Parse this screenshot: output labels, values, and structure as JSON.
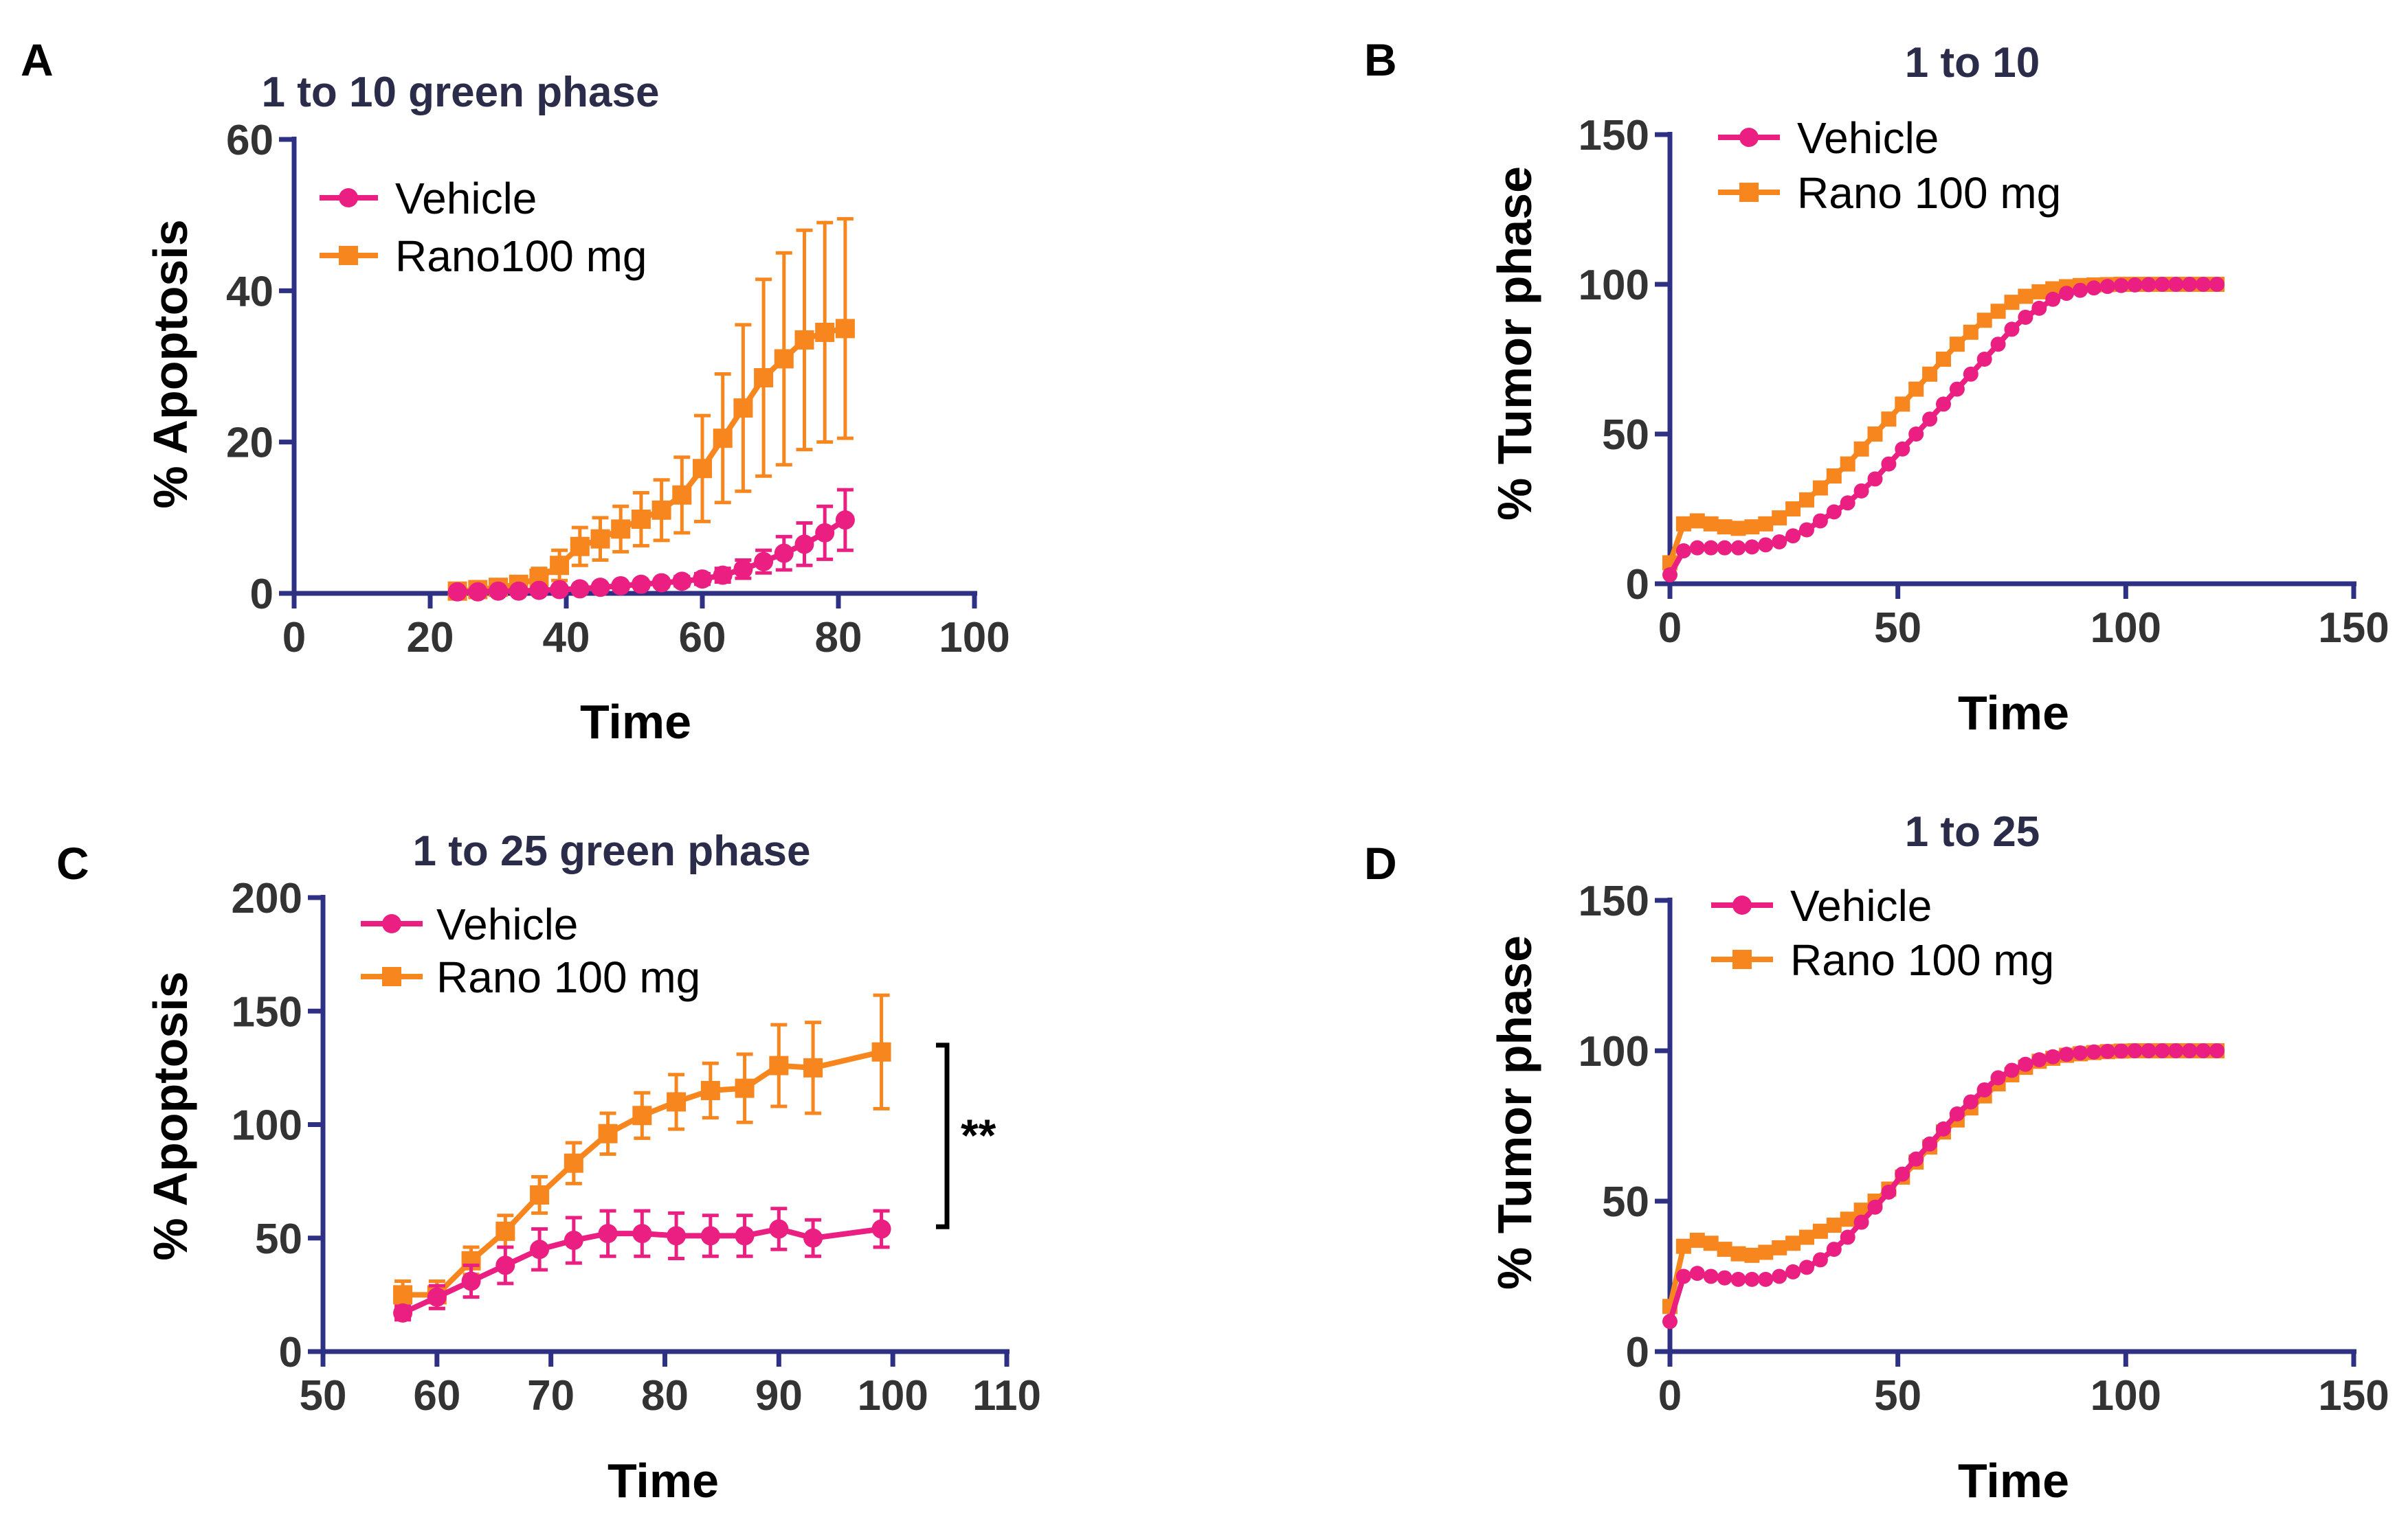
{
  "colors": {
    "vehicle": "#ea1f81",
    "rano": "#f7861f",
    "axis": "#2e3183",
    "title": "#2b2b4a"
  },
  "chart_data": [
    {
      "id": "A",
      "panel_label": "A",
      "type": "line",
      "title": "1 to 10 green phase",
      "xlabel": "Time",
      "ylabel": "% Apoptosis",
      "xlim": [
        0,
        100
      ],
      "ylim": [
        0,
        60
      ],
      "xticks": [
        0,
        20,
        40,
        60,
        80,
        100
      ],
      "yticks": [
        0,
        20,
        40,
        60
      ],
      "legend": "top-left",
      "series": [
        {
          "name": "Vehicle",
          "marker": "circle",
          "x": [
            24,
            27,
            30,
            33,
            36,
            39,
            42,
            45,
            48,
            51,
            54,
            57,
            60,
            63,
            66,
            69,
            72,
            75,
            78,
            81
          ],
          "y": [
            0.2,
            0.2,
            0.3,
            0.3,
            0.4,
            0.5,
            0.6,
            0.8,
            1.0,
            1.2,
            1.4,
            1.6,
            1.9,
            2.4,
            3.2,
            4.2,
            5.3,
            6.5,
            8.0,
            9.7
          ],
          "err": [
            0.1,
            0.1,
            0.1,
            0.1,
            0.1,
            0.2,
            0.2,
            0.3,
            0.3,
            0.4,
            0.5,
            0.6,
            0.7,
            0.9,
            1.2,
            1.5,
            2.2,
            2.8,
            3.5,
            4.0
          ]
        },
        {
          "name": "Rano100 mg",
          "marker": "square",
          "x": [
            24,
            27,
            30,
            33,
            36,
            39,
            42,
            45,
            48,
            51,
            54,
            57,
            60,
            63,
            66,
            69,
            72,
            75,
            78,
            81
          ],
          "y": [
            0.3,
            0.5,
            0.8,
            1.2,
            2.0,
            3.7,
            6.2,
            7.2,
            8.5,
            9.8,
            11.0,
            13.0,
            16.5,
            20.5,
            24.5,
            28.5,
            31.0,
            33.5,
            34.5,
            35.0
          ],
          "err": [
            0.3,
            0.4,
            0.6,
            0.9,
            1.3,
            2.0,
            2.5,
            2.8,
            3.0,
            3.5,
            4.0,
            5.0,
            7.0,
            8.5,
            11.0,
            13.0,
            14.0,
            14.5,
            14.5,
            14.5
          ]
        }
      ]
    },
    {
      "id": "B",
      "panel_label": "B",
      "type": "line",
      "title": "1 to 10",
      "xlabel": "Time",
      "ylabel": "% Tumor phase",
      "xlim": [
        0,
        150
      ],
      "ylim": [
        0,
        150
      ],
      "xticks": [
        0,
        50,
        100,
        150
      ],
      "yticks": [
        0,
        50,
        100,
        150
      ],
      "legend": "top-left",
      "series": [
        {
          "name": "Vehicle",
          "marker": "circle",
          "x": [
            0,
            3,
            6,
            9,
            12,
            15,
            18,
            21,
            24,
            27,
            30,
            33,
            36,
            39,
            42,
            45,
            48,
            51,
            54,
            57,
            60,
            63,
            66,
            69,
            72,
            75,
            78,
            81,
            84,
            87,
            90,
            93,
            96,
            99,
            102,
            105,
            108,
            111,
            114,
            117,
            120
          ],
          "y": [
            3,
            11,
            12,
            12,
            12,
            12,
            12.3,
            13,
            14,
            16,
            18,
            21,
            24,
            27,
            31,
            35,
            40,
            45,
            50,
            55,
            60,
            65,
            70,
            75,
            80,
            85,
            89,
            92,
            95,
            97,
            98,
            98.8,
            99.3,
            99.6,
            99.8,
            99.9,
            100,
            100,
            100,
            100,
            100
          ]
        },
        {
          "name": "Rano 100 mg",
          "marker": "square",
          "x": [
            0,
            3,
            6,
            9,
            12,
            15,
            18,
            21,
            24,
            27,
            30,
            33,
            36,
            39,
            42,
            45,
            48,
            51,
            54,
            57,
            60,
            63,
            66,
            69,
            72,
            75,
            78,
            81,
            84,
            87,
            90,
            93,
            96,
            99,
            102,
            105,
            108,
            111,
            114,
            117,
            120
          ],
          "y": [
            7,
            20,
            21,
            20,
            19,
            18.5,
            19,
            20,
            22,
            25,
            28,
            32,
            36,
            40,
            45,
            50,
            55,
            60,
            65,
            70,
            75,
            80,
            84,
            88,
            91,
            94,
            96,
            97.5,
            98.5,
            99.2,
            99.6,
            99.8,
            99.9,
            100,
            100,
            100,
            100,
            100,
            100,
            100,
            100
          ]
        }
      ]
    },
    {
      "id": "C",
      "panel_label": "C",
      "type": "line",
      "title": "1 to 25 green phase",
      "xlabel": "Time",
      "ylabel": "% Apoptosis",
      "xlim": [
        50,
        110
      ],
      "ylim": [
        0,
        200
      ],
      "xticks": [
        50,
        60,
        70,
        80,
        90,
        100,
        110
      ],
      "yticks": [
        0,
        50,
        100,
        150,
        200
      ],
      "legend": "top-left",
      "annotation": "**",
      "bracket_y": [
        55,
        135
      ],
      "series": [
        {
          "name": "Vehicle",
          "marker": "circle",
          "x": [
            57,
            60,
            63,
            66,
            69,
            72,
            75,
            78,
            81,
            84,
            87,
            90,
            93,
            99
          ],
          "y": [
            17,
            24,
            31,
            38,
            45,
            49,
            52,
            52,
            51,
            51,
            51,
            54,
            50,
            54
          ],
          "err": [
            3,
            5,
            7,
            8,
            9,
            10,
            10,
            10,
            10,
            9,
            9,
            9,
            8,
            8
          ]
        },
        {
          "name": "Rano 100 mg",
          "marker": "square",
          "x": [
            57,
            60,
            63,
            66,
            69,
            72,
            75,
            78,
            81,
            84,
            87,
            90,
            93,
            99
          ],
          "y": [
            25,
            25,
            40,
            53,
            69,
            83,
            96,
            104,
            110,
            115,
            116,
            126,
            125,
            132
          ],
          "err": [
            6,
            6,
            6,
            7,
            8,
            9,
            9,
            10,
            12,
            12,
            15,
            18,
            20,
            25
          ]
        }
      ]
    },
    {
      "id": "D",
      "panel_label": "D",
      "type": "line",
      "title": "1 to 25",
      "xlabel": "Time",
      "ylabel": "% Tumor phase",
      "xlim": [
        0,
        150
      ],
      "ylim": [
        0,
        150
      ],
      "xticks": [
        0,
        50,
        100,
        150
      ],
      "yticks": [
        0,
        50,
        100,
        150
      ],
      "legend": "top-left",
      "series": [
        {
          "name": "Vehicle",
          "marker": "circle",
          "x": [
            0,
            3,
            6,
            9,
            12,
            15,
            18,
            21,
            24,
            27,
            30,
            33,
            36,
            39,
            42,
            45,
            48,
            51,
            54,
            57,
            60,
            63,
            66,
            69,
            72,
            75,
            78,
            81,
            84,
            87,
            90,
            93,
            96,
            99,
            102,
            105,
            108,
            111,
            114,
            117,
            120
          ],
          "y": [
            10,
            25,
            26,
            25,
            24.5,
            24,
            24,
            24,
            25,
            26.5,
            28,
            30.5,
            34,
            38,
            43,
            48,
            53,
            59,
            64,
            69,
            74,
            79,
            83,
            87,
            91,
            93.5,
            95.5,
            97,
            98,
            98.8,
            99.3,
            99.6,
            99.8,
            99.9,
            100,
            100,
            100,
            100,
            100,
            100,
            100
          ]
        },
        {
          "name": "Rano 100 mg",
          "marker": "square",
          "x": [
            0,
            3,
            6,
            9,
            12,
            15,
            18,
            21,
            24,
            27,
            30,
            33,
            36,
            39,
            42,
            45,
            48,
            51,
            54,
            57,
            60,
            63,
            66,
            69,
            72,
            75,
            78,
            81,
            84,
            87,
            90,
            93,
            96,
            99,
            102,
            105,
            108,
            111,
            114,
            117,
            120
          ],
          "y": [
            15,
            35,
            37,
            36,
            34,
            32.5,
            32,
            33,
            34.5,
            36,
            38,
            40,
            42,
            44,
            47,
            50,
            54,
            58,
            63,
            68,
            73,
            77,
            81,
            85,
            89,
            92,
            94.5,
            96.5,
            97.5,
            98.5,
            99,
            99.4,
            99.7,
            99.9,
            100,
            100,
            100,
            100,
            100,
            100,
            100
          ]
        }
      ]
    }
  ]
}
